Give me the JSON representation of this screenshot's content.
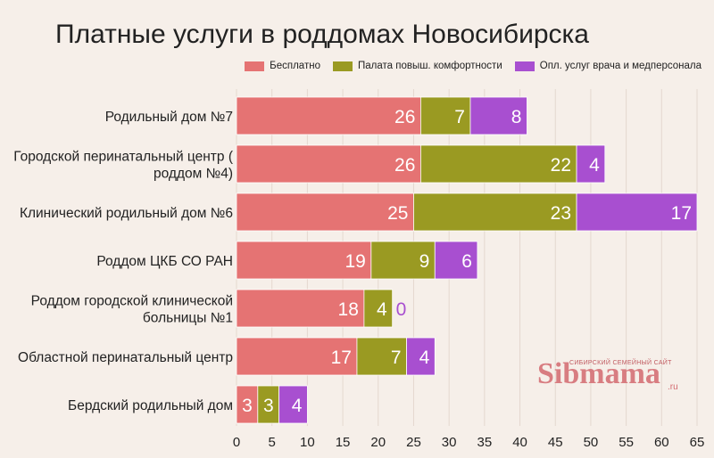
{
  "chart_data": {
    "type": "bar",
    "orientation": "horizontal",
    "stacked": true,
    "title": "Платные услуги в роддомах Новосибирска",
    "categories": [
      "Родильный дом №7",
      "Городской перинатальный центр ( роддом №4)",
      "Клинический родильный дом №6",
      "Роддом ЦКБ СО РАН",
      "Роддом городской клинической больницы №1",
      "Областной перинатальный центр",
      "Бердский родильный дом"
    ],
    "category_lines": [
      [
        "Родильный дом №7"
      ],
      [
        "Городской перинатальный центр (",
        "роддом №4)"
      ],
      [
        "Клинический родильный дом №6"
      ],
      [
        "Роддом ЦКБ СО РАН"
      ],
      [
        "Роддом городской клинической",
        "больницы №1"
      ],
      [
        "Областной перинатальный центр"
      ],
      [
        "Бердский родильный дом"
      ]
    ],
    "series": [
      {
        "name": "Бесплатно",
        "color": "#e57373",
        "values": [
          26,
          26,
          25,
          19,
          18,
          17,
          3
        ]
      },
      {
        "name": "Палата повыш. комфортности",
        "color": "#9a9a22",
        "values": [
          7,
          22,
          23,
          9,
          4,
          7,
          3
        ]
      },
      {
        "name": "Опл. услуг врача и медперсонала",
        "color": "#a84fd0",
        "values": [
          8,
          4,
          17,
          6,
          0,
          4,
          4
        ]
      }
    ],
    "xlim": [
      0,
      65
    ],
    "xticks": [
      0,
      5,
      10,
      15,
      20,
      25,
      30,
      35,
      40,
      45,
      50,
      55,
      60,
      65
    ],
    "grid": true,
    "legend_position": "top-right"
  },
  "watermark": {
    "tagline": "СИБИРСКИЙ СЕМЕЙНЫЙ САЙТ",
    "brand": "Sibmama",
    "domain": ".ru"
  }
}
